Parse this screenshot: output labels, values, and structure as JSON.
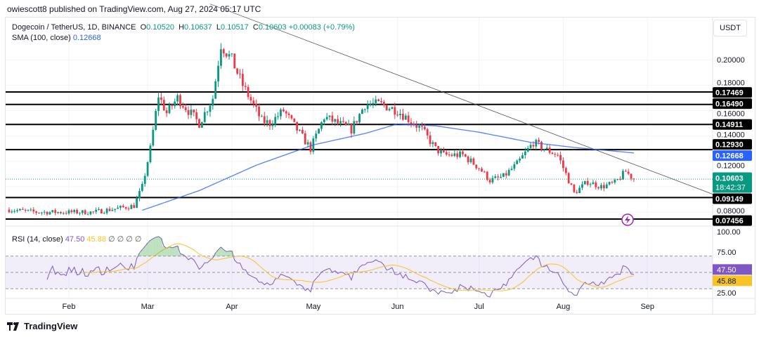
{
  "header": {
    "published": "owiescott8 published on TradingView.com, Aug 27, 2024 05:17 UTC",
    "symbol": "Dogecoin / TetherUS, 1D, BINANCE",
    "o_label": "O",
    "o": "0.10520",
    "h_label": "H",
    "h": "0.10637",
    "l_label": "L",
    "l": "0.10517",
    "c_label": "C",
    "c": "0.10603",
    "change": "+0.00083 (+0.79%)",
    "sma_label": "SMA (100, close)",
    "sma_value": "0.12668",
    "rsi_label": "RSI (14, close)",
    "rsi_value": "47.50",
    "rsi_ma_value": "45.88",
    "rsi_zeros": "∅ ∅ ∅ ∅"
  },
  "currency_button": "USDT",
  "footer": {
    "brand": "TradingView"
  },
  "colors": {
    "up": "#089981",
    "down": "#f23645",
    "sma": "#2962ff",
    "rsi": "#7e57c2",
    "rsi_ma": "#f7c325",
    "level": "#000000"
  },
  "chart_data": {
    "type": "candlestick",
    "x_start": "2024-01-10",
    "x_end": "2024-08-27",
    "x_ticks": [
      {
        "label": "Feb",
        "date": "2024-02-01"
      },
      {
        "label": "Mar",
        "date": "2024-03-01"
      },
      {
        "label": "Apr",
        "date": "2024-04-01"
      },
      {
        "label": "May",
        "date": "2024-05-01"
      },
      {
        "label": "Jun",
        "date": "2024-06-01"
      },
      {
        "label": "Jul",
        "date": "2024-07-01"
      },
      {
        "label": "Aug",
        "date": "2024-08-01"
      },
      {
        "label": "Sep",
        "date": "2024-09-01"
      }
    ],
    "y_ticks": [
      "0.20000",
      "0.18000",
      "0.16000",
      "0.14000",
      "0.12000",
      "0.08000"
    ],
    "close_path": [
      [
        "2024-01-10",
        0.082
      ],
      [
        "2024-01-20",
        0.08
      ],
      [
        "2024-02-10",
        0.08
      ],
      [
        "2024-02-25",
        0.085
      ],
      [
        "2024-02-28",
        0.1
      ],
      [
        "2024-03-02",
        0.13
      ],
      [
        "2024-03-05",
        0.172
      ],
      [
        "2024-03-08",
        0.158
      ],
      [
        "2024-03-12",
        0.17
      ],
      [
        "2024-03-20",
        0.15
      ],
      [
        "2024-03-25",
        0.17
      ],
      [
        "2024-03-28",
        0.212
      ],
      [
        "2024-04-01",
        0.2
      ],
      [
        "2024-04-05",
        0.18
      ],
      [
        "2024-04-12",
        0.152
      ],
      [
        "2024-04-15",
        0.15
      ],
      [
        "2024-04-20",
        0.16
      ],
      [
        "2024-04-30",
        0.13
      ],
      [
        "2024-05-05",
        0.155
      ],
      [
        "2024-05-15",
        0.145
      ],
      [
        "2024-05-20",
        0.165
      ],
      [
        "2024-05-26",
        0.165
      ],
      [
        "2024-06-01",
        0.16
      ],
      [
        "2024-06-10",
        0.145
      ],
      [
        "2024-06-15",
        0.13
      ],
      [
        "2024-06-18",
        0.125
      ],
      [
        "2024-06-25",
        0.125
      ],
      [
        "2024-07-01",
        0.115
      ],
      [
        "2024-07-05",
        0.105
      ],
      [
        "2024-07-10",
        0.108
      ],
      [
        "2024-07-15",
        0.118
      ],
      [
        "2024-07-21",
        0.135
      ],
      [
        "2024-07-25",
        0.13
      ],
      [
        "2024-07-30",
        0.125
      ],
      [
        "2024-08-05",
        0.095
      ],
      [
        "2024-08-10",
        0.104
      ],
      [
        "2024-08-15",
        0.1
      ],
      [
        "2024-08-20",
        0.103
      ],
      [
        "2024-08-24",
        0.112
      ],
      [
        "2024-08-27",
        0.10603
      ]
    ],
    "sma_path": [
      [
        "2024-02-28",
        0.0815
      ],
      [
        "2024-03-20",
        0.097
      ],
      [
        "2024-04-10",
        0.117
      ],
      [
        "2024-05-01",
        0.133
      ],
      [
        "2024-05-20",
        0.142
      ],
      [
        "2024-06-01",
        0.1495
      ],
      [
        "2024-06-15",
        0.148
      ],
      [
        "2024-07-01",
        0.143
      ],
      [
        "2024-07-20",
        0.135
      ],
      [
        "2024-08-05",
        0.131
      ],
      [
        "2024-08-27",
        0.12668
      ]
    ],
    "trendline": [
      [
        "2024-03-24",
        0.244
      ],
      [
        "2024-09-26",
        0.0934
      ]
    ],
    "levels": [
      "0.17469",
      "0.16490",
      "0.14911",
      "0.12930",
      "0.09149",
      "0.07456"
    ],
    "sma_last": "0.12668",
    "last_price": "0.10603",
    "countdown": "18:42:37",
    "rsi": {
      "y_ticks": [
        "100.00",
        "75.00",
        "25.00"
      ],
      "band": [
        30,
        70
      ],
      "mid": 50,
      "last": "47.50",
      "ma_last": "45.88"
    }
  }
}
